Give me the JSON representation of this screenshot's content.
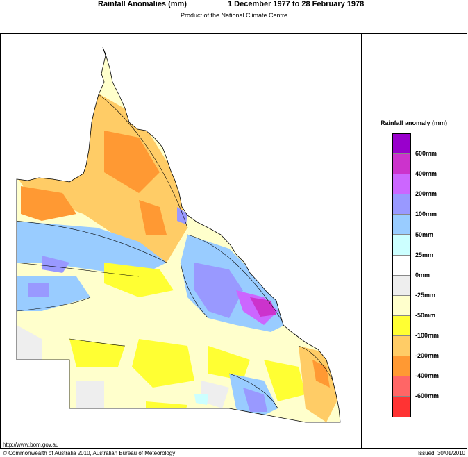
{
  "header": {
    "title": "Rainfall Anomalies (mm)",
    "period": "1 December 1977 to 28 February 1978",
    "subtitle": "Product of the National Climate Centre"
  },
  "legend": {
    "title": "Rainfall anomaly (mm)",
    "colors": [
      "#9900cc",
      "#cc33cc",
      "#cc66ff",
      "#9999ff",
      "#99ccff",
      "#ccffff",
      "#ffffff",
      "#eeeeee",
      "#ffffcc",
      "#ffff33",
      "#ffcc66",
      "#ff9933",
      "#ff6666",
      "#ff3333"
    ],
    "labels": [
      "600mm",
      "400mm",
      "200mm",
      "100mm",
      "50mm",
      "25mm",
      "0mm",
      "-25mm",
      "-50mm",
      "-100mm",
      "-200mm",
      "-400mm",
      "-600mm"
    ]
  },
  "footer": {
    "url": "http://www.bom.gov.au",
    "copyright": "© Commonwealth of Australia 2010, Australian Bureau of Meteorology",
    "issued": "Issued: 30/01/2010"
  }
}
